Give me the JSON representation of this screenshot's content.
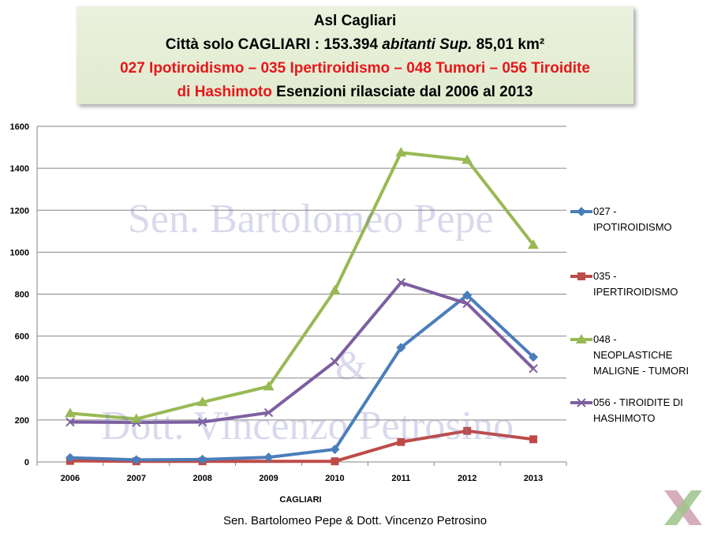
{
  "header": {
    "line1": "Asl Cagliari",
    "line2_a": "Città solo CAGLIARI : 153.394 ",
    "line2_b": "abitanti Sup.",
    "line2_c": " 85,01 km²",
    "line3": "027 Ipotiroidismo – 035 Ipertiroidismo – 048 Tumori – 056 Tiroidite",
    "line4_red": "di Hashimoto",
    "line4_black": " Esenzioni rilasciate dal 2006 al 2013"
  },
  "watermark": {
    "line1": "Sen. Bartolomeo Pepe",
    "amp": "&",
    "line2": "Dott. Vincenzo Petrosino"
  },
  "footer": "Sen. Bartolomeo Pepe & Dott. Vincenzo Petrosino",
  "colors": {
    "series_027": "#4a7ebb",
    "series_035": "#be4b48",
    "series_048": "#98b954",
    "series_056": "#7d5fa0",
    "header_bg": "#eaf1dd",
    "header_red": "#e8161b"
  },
  "chart_data": {
    "type": "line",
    "xlabel": "CAGLIARI",
    "ylabel": "",
    "ylim": [
      0,
      1600
    ],
    "yticks": [
      0,
      200,
      400,
      600,
      800,
      1000,
      1200,
      1400,
      1600
    ],
    "categories": [
      "2006",
      "2007",
      "2008",
      "2009",
      "2010",
      "2011",
      "2012",
      "2013"
    ],
    "grid": true,
    "legend_position": "right",
    "series": [
      {
        "id": "s027",
        "name": "027 - IPOTIROIDISMO",
        "legend_lines": [
          "027 -",
          "IPOTIROIDISMO"
        ],
        "marker": "diamond",
        "values": [
          20,
          10,
          12,
          22,
          60,
          545,
          795,
          500
        ]
      },
      {
        "id": "s035",
        "name": "035 - IPERTIROIDISMO",
        "legend_lines": [
          "035 -",
          "IPERTIROIDISMO"
        ],
        "marker": "square",
        "values": [
          5,
          3,
          3,
          null,
          3,
          95,
          148,
          108
        ]
      },
      {
        "id": "s048",
        "name": "048 - NEOPLASTICHE MALIGNE - TUMORI",
        "legend_lines": [
          "048 -",
          "NEOPLASTICHE",
          "MALIGNE - TUMORI"
        ],
        "marker": "triangle",
        "values": [
          232,
          205,
          285,
          360,
          818,
          1475,
          1440,
          1035
        ]
      },
      {
        "id": "s056",
        "name": "056 - TIROIDITE DI HASHIMOTO",
        "legend_lines": [
          "056 - TIROIDITE DI",
          "HASHIMOTO"
        ],
        "marker": "x",
        "values": [
          190,
          188,
          190,
          235,
          478,
          855,
          755,
          445
        ]
      }
    ]
  }
}
